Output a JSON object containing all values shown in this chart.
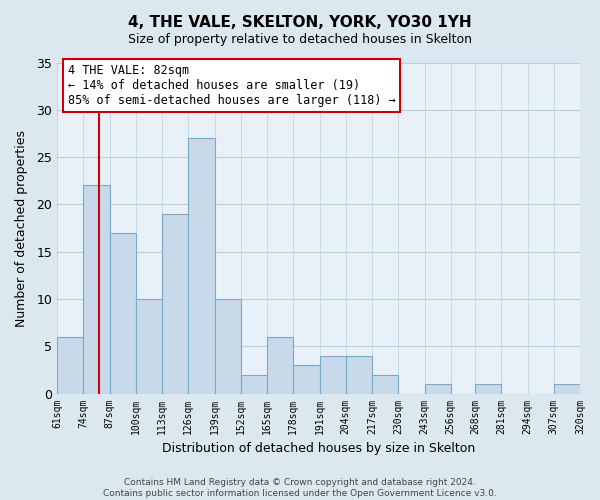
{
  "title": "4, THE VALE, SKELTON, YORK, YO30 1YH",
  "subtitle": "Size of property relative to detached houses in Skelton",
  "xlabel": "Distribution of detached houses by size in Skelton",
  "ylabel": "Number of detached properties",
  "footer_line1": "Contains HM Land Registry data © Crown copyright and database right 2024.",
  "footer_line2": "Contains public sector information licensed under the Open Government Licence v3.0.",
  "bin_edges": [
    61,
    74,
    87,
    100,
    113,
    126,
    139,
    152,
    165,
    178,
    191,
    204,
    217,
    230,
    243,
    256,
    268,
    281,
    294,
    307,
    320
  ],
  "bin_labels": [
    "61sqm",
    "74sqm",
    "87sqm",
    "100sqm",
    "113sqm",
    "126sqm",
    "139sqm",
    "152sqm",
    "165sqm",
    "178sqm",
    "191sqm",
    "204sqm",
    "217sqm",
    "230sqm",
    "243sqm",
    "256sqm",
    "268sqm",
    "281sqm",
    "294sqm",
    "307sqm",
    "320sqm"
  ],
  "counts": [
    6,
    22,
    17,
    10,
    19,
    27,
    10,
    2,
    6,
    3,
    4,
    4,
    2,
    0,
    1,
    0,
    1,
    0,
    0,
    1
  ],
  "bar_color": "#c8d9ea",
  "bar_edge_color": "#7aaac8",
  "marker_value": 82,
  "marker_color": "#cc0000",
  "annotation_title": "4 THE VALE: 82sqm",
  "annotation_line1": "← 14% of detached houses are smaller (19)",
  "annotation_line2": "85% of semi-detached houses are larger (118) →",
  "annotation_box_edge": "#cc0000",
  "ylim": [
    0,
    35
  ],
  "yticks": [
    0,
    5,
    10,
    15,
    20,
    25,
    30,
    35
  ],
  "bg_color": "#dce8f0",
  "plot_bg_color": "#e8f0f8",
  "grid_color": "#b8cfe0"
}
